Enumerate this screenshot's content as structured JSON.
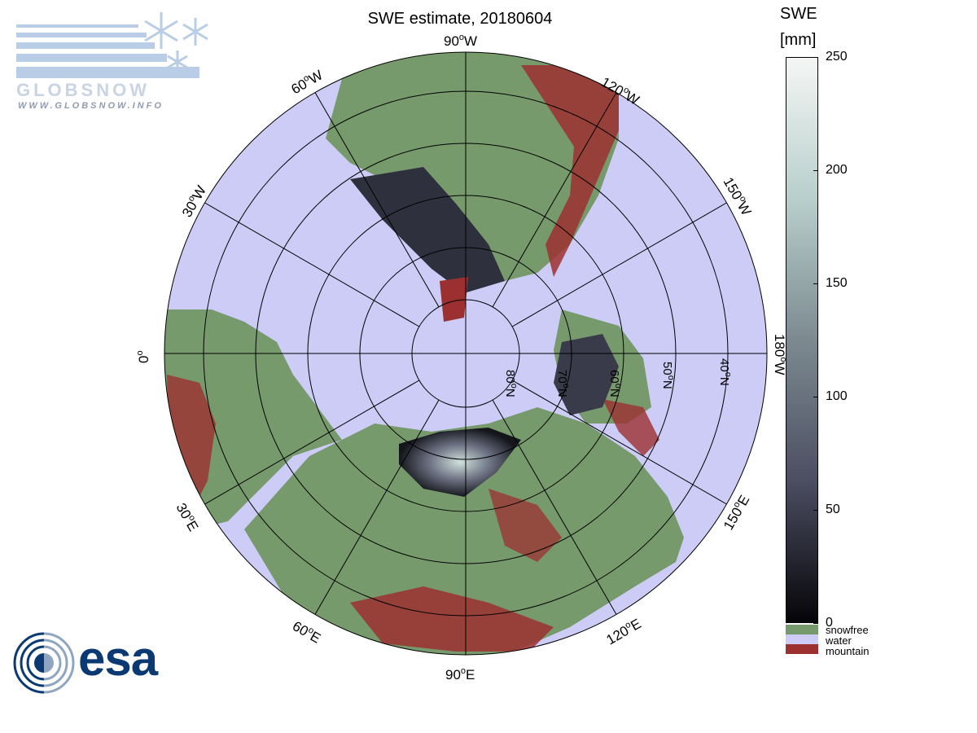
{
  "title": "SWE estimate, 20180604",
  "logo": {
    "brand": "GLOBSNOW",
    "url": "WWW.GLOBSNOW.INFO",
    "agency": "esa"
  },
  "colorbar": {
    "title_line1": "SWE",
    "title_line2": "[mm]",
    "ticks": [
      "250",
      "200",
      "150",
      "100",
      "50",
      "0"
    ],
    "categories": [
      {
        "label": "snowfree",
        "color": "#779a6c"
      },
      {
        "label": "water",
        "color": "#ccccf7"
      },
      {
        "label": "mountain",
        "color": "#9c3030"
      }
    ],
    "gradient": [
      "#f4f6f4",
      "#b8cfcc",
      "#7c8a90",
      "#4c4e62",
      "#050508"
    ]
  },
  "map": {
    "longitude_labels": {
      "lon_90w": "90",
      "lon_120w": "120",
      "lon_150w": "150",
      "lon_180w": "180",
      "lon_150e": "150",
      "lon_120e": "120",
      "lon_90e": "90",
      "lon_60e": "60",
      "lon_30e": "30",
      "lon_0": "0",
      "lon_30w": "30",
      "lon_60w": "60",
      "deg": "o",
      "w": "W",
      "e": "E"
    },
    "latitude_labels": {
      "lat80": "80",
      "lat70": "70",
      "lat60": "60",
      "lat50": "50",
      "lat40": "40",
      "deg": "o",
      "n": "N"
    },
    "colors": {
      "snowfree": "#779a6c",
      "water": "#ccccf7",
      "mountain": "#9c3030",
      "snow_dark": "#2a2b36",
      "snow_light": "#e6f0ea"
    }
  }
}
